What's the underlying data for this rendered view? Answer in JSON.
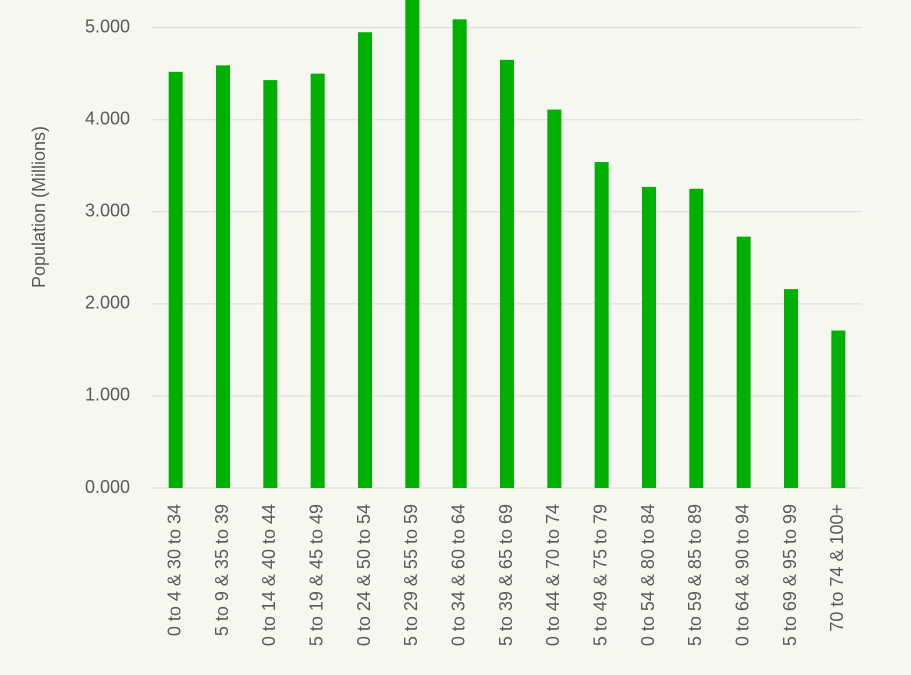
{
  "chart_data": {
    "type": "bar",
    "y_label": "Population (Millions)",
    "categories": [
      "0 to 4 & 30 to 34",
      "5 to 9 & 35 to 39",
      "0 to 14 & 40 to 44",
      "5 to 19 & 45 to 49",
      "0 to 24 & 50 to 54",
      "5 to 29 & 55 to 59",
      "0 to 34 & 60 to 64",
      "5 to 39 & 65 to 69",
      "0 to 44 & 70 to 74",
      "5 to 49 & 75 to 79",
      "0 to 54 & 80 to 84",
      "5 to 59 & 85 to 89",
      "0 to 64 & 90 to 94",
      "5 to 69 & 95 to 99",
      "70 to 74 & 100+"
    ],
    "values": [
      4.52,
      4.59,
      4.43,
      4.5,
      4.95,
      5.35,
      5.09,
      4.65,
      4.11,
      3.54,
      3.27,
      3.25,
      2.73,
      2.16,
      1.71
    ],
    "color": "#00b000",
    "ylim": [
      0,
      5.3
    ],
    "yticks": [
      {
        "value": 0,
        "label": "0.000"
      },
      {
        "value": 1,
        "label": "1.000"
      },
      {
        "value": 2,
        "label": "2.000"
      },
      {
        "value": 3,
        "label": "3.000"
      },
      {
        "value": 4,
        "label": "4.000"
      },
      {
        "value": 5,
        "label": "5.000"
      }
    ],
    "grid": true
  }
}
